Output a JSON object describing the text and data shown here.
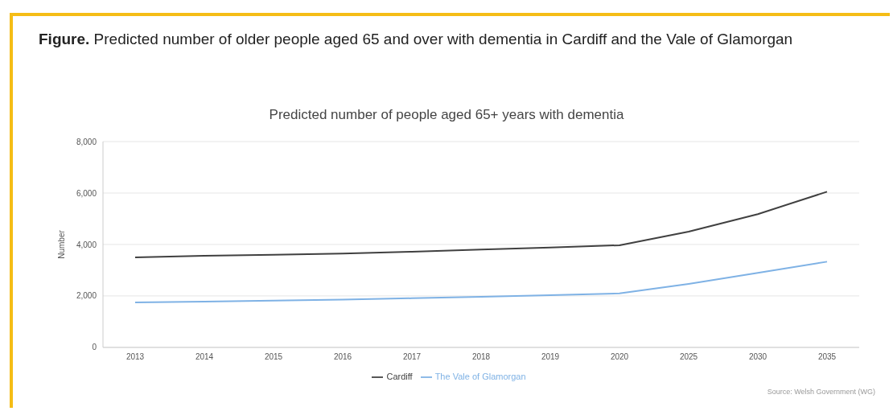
{
  "chart_data": {
    "type": "line",
    "title": "Figure. Predicted number of older people aged 65 and over with dementia in Cardiff and the Vale of Glamorgan",
    "subtitle": "Predicted number of people aged 65+ years with dementia",
    "ylabel": "Number",
    "categories": [
      "2013",
      "2014",
      "2015",
      "2016",
      "2017",
      "2018",
      "2019",
      "2020",
      "2025",
      "2030",
      "2035"
    ],
    "series": [
      {
        "name": "The Vale of Glamorgan",
        "color": "#7fb2e5",
        "values": [
          1750,
          1780,
          1820,
          1860,
          1910,
          1970,
          2030,
          2100,
          2470,
          2900,
          3330
        ]
      },
      {
        "name": "Cardiff",
        "color": "#404040",
        "values": [
          3500,
          3560,
          3600,
          3650,
          3720,
          3800,
          3880,
          3970,
          4500,
          5180,
          6050
        ]
      }
    ],
    "ylim": [
      0,
      8000
    ],
    "yticks": [
      {
        "value": 0,
        "label": "0"
      },
      {
        "value": 2000,
        "label": "2,000"
      },
      {
        "value": 4000,
        "label": "4,000"
      },
      {
        "value": 6000,
        "label": "6,000"
      },
      {
        "value": 8000,
        "label": "8,000"
      }
    ],
    "grid": "y",
    "legend": "bottom",
    "marker": "none",
    "line_style": "solid",
    "annotations": [
      "Source: Welsh Government (WG)"
    ]
  }
}
